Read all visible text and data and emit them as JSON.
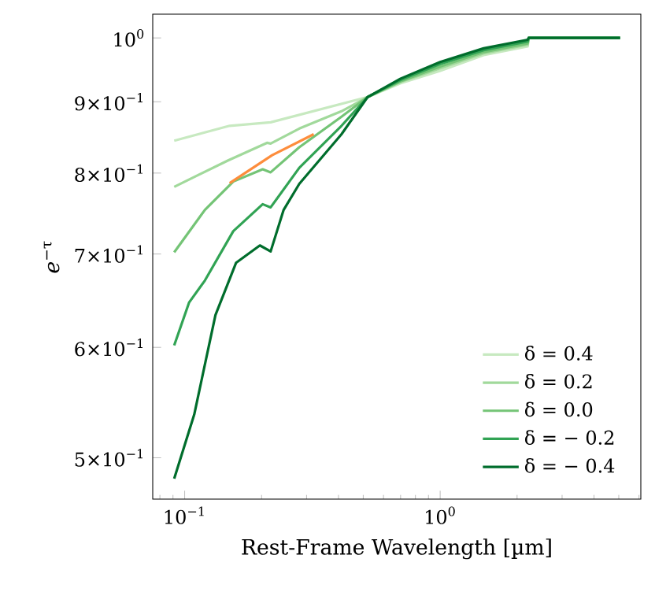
{
  "chart_data": {
    "type": "line",
    "xlabel": "Rest-Frame Wavelength [µm]",
    "ylabel": "*e*$^{−τ}$",
    "log": "xy",
    "xlim": [
      0.075,
      6.1
    ],
    "ylim": [
      0.467,
      1.04
    ],
    "xticks": [
      {
        "value": 0.1,
        "label": "10$^{−1}$"
      },
      {
        "value": 1,
        "label": "10$^{0}$"
      }
    ],
    "yticks": [
      {
        "value": 0.5,
        "label": "5×10$^{−1}$"
      },
      {
        "value": 0.6,
        "label": "6×10$^{−1}$"
      },
      {
        "value": 0.7,
        "label": "7×10$^{−1}$"
      },
      {
        "value": 0.8,
        "label": "8×10$^{−1}$"
      },
      {
        "value": 0.9,
        "label": "9×10$^{−1}$"
      },
      {
        "value": 1,
        "label": "10$^{0}$"
      }
    ],
    "legend": "bottom right",
    "grid": false,
    "marker": "none",
    "line_style": "solid",
    "series": [
      {
        "name": "δ = 0.4",
        "color": "#c7e9c0",
        "x": [
          0.091,
          0.15,
          0.217,
          0.52,
          0.7,
          1.0,
          1.48,
          2.2,
          2.22,
          5.06
        ],
        "values": [
          0.844,
          0.865,
          0.87,
          0.907,
          0.928,
          0.947,
          0.972,
          0.986,
          1.0,
          1.0
        ]
      },
      {
        "name": "δ = 0.2",
        "color": "#a1d99b",
        "x": [
          0.091,
          0.148,
          0.21,
          0.217,
          0.281,
          0.411,
          0.52,
          0.7,
          1.0,
          1.48,
          2.2,
          2.22,
          5.06
        ],
        "values": [
          0.782,
          0.817,
          0.841,
          0.84,
          0.861,
          0.886,
          0.907,
          0.93,
          0.951,
          0.975,
          0.989,
          1.0,
          1.0
        ]
      },
      {
        "name": "δ = 0.0",
        "color": "#74c476",
        "x": [
          0.091,
          0.12,
          0.155,
          0.202,
          0.217,
          0.281,
          0.411,
          0.52,
          0.7,
          1.0,
          1.48,
          2.2,
          2.22,
          5.06
        ],
        "values": [
          0.702,
          0.753,
          0.789,
          0.805,
          0.801,
          0.835,
          0.878,
          0.907,
          0.931,
          0.954,
          0.977,
          0.991,
          1.0,
          1.0
        ]
      },
      {
        "name": "δ = − 0.2",
        "color": "#31a354",
        "x": [
          0.091,
          0.104,
          0.12,
          0.155,
          0.202,
          0.217,
          0.281,
          0.411,
          0.52,
          0.7,
          1.0,
          1.48,
          2.2,
          2.22,
          5.06
        ],
        "values": [
          0.602,
          0.646,
          0.67,
          0.727,
          0.76,
          0.756,
          0.807,
          0.865,
          0.907,
          0.933,
          0.958,
          0.98,
          0.994,
          1.0,
          1.0
        ]
      },
      {
        "name": "δ = − 0.4",
        "color": "#006d2c",
        "x": [
          0.091,
          0.109,
          0.132,
          0.159,
          0.197,
          0.217,
          0.244,
          0.281,
          0.411,
          0.52,
          0.7,
          1.0,
          1.48,
          2.2,
          2.22,
          5.06
        ],
        "values": [
          0.483,
          0.537,
          0.633,
          0.69,
          0.71,
          0.703,
          0.753,
          0.786,
          0.853,
          0.907,
          0.935,
          0.961,
          0.983,
          0.997,
          1.0,
          1.0
        ]
      },
      {
        "color": "#fd8d3c",
        "x": [
          0.15,
          0.22,
          0.32
        ],
        "values": [
          0.787,
          0.824,
          0.853
        ]
      }
    ]
  }
}
